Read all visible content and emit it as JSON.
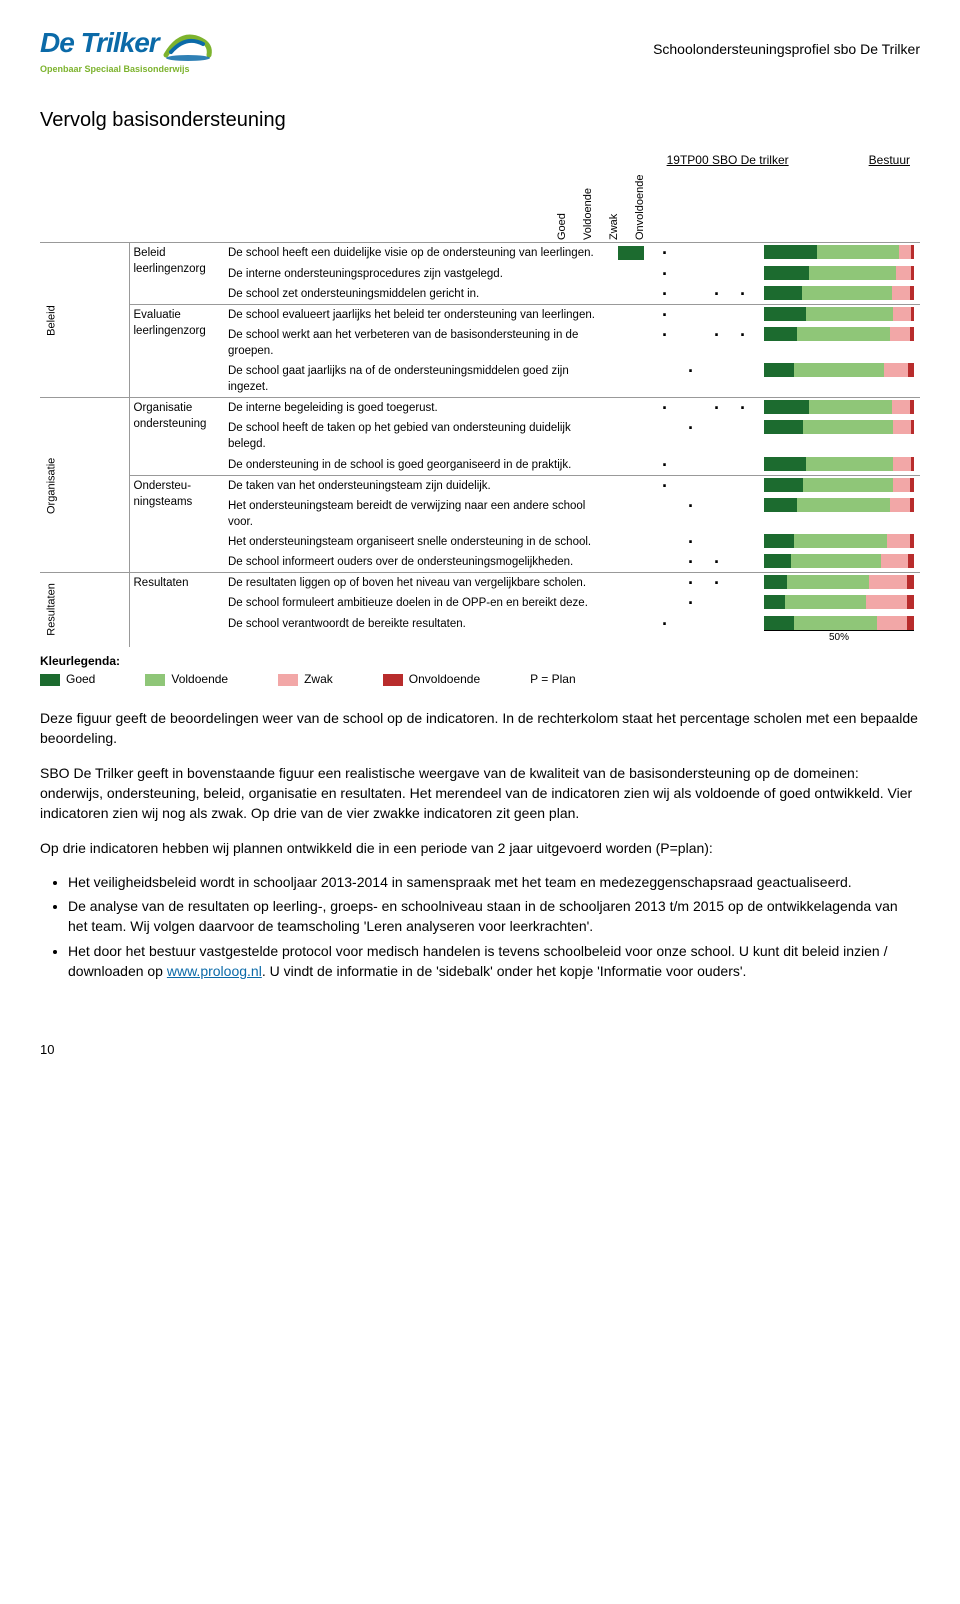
{
  "colors": {
    "goed": "#1c6b2f",
    "voldoende": "#8fc678",
    "zwak": "#f2a7a7",
    "onvoldoende": "#b82c2c",
    "border": "#999999",
    "logo_blue": "#0b6aa8",
    "logo_green": "#7db32e"
  },
  "header": {
    "logo_name": "De Trilker",
    "logo_tagline": "Openbaar Speciaal Basisonderwijs",
    "caption": "Schoolondersteuningsprofiel sbo De Trilker"
  },
  "section_title": "Vervolg basisondersteuning",
  "chart": {
    "school_label": "19TP00 SBO De trilker",
    "bestuur_label": "Bestuur",
    "col_labels": [
      "Goed",
      "Voldoende",
      "Zwak",
      "Onvoldoende"
    ],
    "fifty_label": "50%",
    "domains": [
      {
        "domain": "Beleid",
        "subcats": [
          {
            "name": "Beleid leerlingenzorg",
            "rows": [
              {
                "text": "De school heeft een duidelijke visie op de ondersteuning van leerlingen.",
                "score_col": 0,
                "dots": [
                  1,
                  0,
                  0,
                  0
                ],
                "bar": [
                  0.35,
                  0.55,
                  0.08,
                  0.02
                ]
              },
              {
                "text": "De interne ondersteuningsprocedures zijn vastgelegd.",
                "score_col": null,
                "dots": [
                  1,
                  0,
                  0,
                  0
                ],
                "bar": [
                  0.3,
                  0.58,
                  0.1,
                  0.02
                ]
              },
              {
                "text": "De school zet ondersteuningsmiddelen gericht in.",
                "score_col": null,
                "dots": [
                  1,
                  0,
                  1,
                  1
                ],
                "bar": [
                  0.25,
                  0.6,
                  0.12,
                  0.03
                ]
              }
            ]
          },
          {
            "name": "Evaluatie leerlingenzorg",
            "rows": [
              {
                "text": "De school evalueert jaarlijks het beleid ter ondersteuning van leerlingen.",
                "score_col": null,
                "dots": [
                  1,
                  0,
                  0,
                  0
                ],
                "bar": [
                  0.28,
                  0.58,
                  0.12,
                  0.02
                ]
              },
              {
                "text": "De school werkt aan het verbeteren van de basisondersteuning in de groepen.",
                "score_col": null,
                "dots": [
                  1,
                  0,
                  1,
                  1
                ],
                "bar": [
                  0.22,
                  0.62,
                  0.13,
                  0.03
                ]
              },
              {
                "text": "De  school gaat jaarlijks na of de ondersteuningsmiddelen goed zijn ingezet.",
                "score_col": null,
                "dots": [
                  0,
                  1,
                  0,
                  0
                ],
                "bar": [
                  0.2,
                  0.6,
                  0.16,
                  0.04
                ]
              }
            ]
          }
        ]
      },
      {
        "domain": "Organisatie",
        "subcats": [
          {
            "name": "Organisatie ondersteuning",
            "rows": [
              {
                "text": "De interne begeleiding is goed toegerust.",
                "score_col": null,
                "dots": [
                  1,
                  0,
                  1,
                  1
                ],
                "bar": [
                  0.3,
                  0.55,
                  0.12,
                  0.03
                ]
              },
              {
                "text": "De school heeft de taken op het gebied van ondersteuning duidelijk belegd.",
                "score_col": null,
                "dots": [
                  0,
                  1,
                  0,
                  0
                ],
                "bar": [
                  0.26,
                  0.6,
                  0.12,
                  0.02
                ]
              },
              {
                "text": "De ondersteuning in de school is goed georganiseerd in de praktijk.",
                "score_col": null,
                "dots": [
                  1,
                  0,
                  0,
                  0
                ],
                "bar": [
                  0.28,
                  0.58,
                  0.12,
                  0.02
                ]
              }
            ]
          },
          {
            "name": "Ondersteu-ningsteams",
            "rows": [
              {
                "text": "De taken van het ondersteuningsteam zijn duidelijk.",
                "score_col": null,
                "dots": [
                  1,
                  0,
                  0,
                  0
                ],
                "bar": [
                  0.26,
                  0.6,
                  0.11,
                  0.03
                ]
              },
              {
                "text": "Het ondersteuningsteam bereidt de verwijzing naar een andere school voor.",
                "score_col": null,
                "dots": [
                  0,
                  1,
                  0,
                  0
                ],
                "bar": [
                  0.22,
                  0.62,
                  0.13,
                  0.03
                ]
              },
              {
                "text": "Het ondersteuningsteam organiseert snelle ondersteuning in de school.",
                "score_col": null,
                "dots": [
                  0,
                  1,
                  0,
                  0
                ],
                "bar": [
                  0.2,
                  0.62,
                  0.15,
                  0.03
                ]
              },
              {
                "text": "De school informeert ouders over de ondersteuningsmogelijkheden.",
                "score_col": null,
                "dots": [
                  0,
                  1,
                  1,
                  0
                ],
                "bar": [
                  0.18,
                  0.6,
                  0.18,
                  0.04
                ]
              }
            ]
          }
        ]
      },
      {
        "domain": "Resultaten",
        "subcats": [
          {
            "name": "Resultaten",
            "rows": [
              {
                "text": "De resultaten liggen op of boven het niveau van vergelijkbare scholen.",
                "score_col": null,
                "dots": [
                  0,
                  1,
                  1,
                  0
                ],
                "bar": [
                  0.15,
                  0.55,
                  0.25,
                  0.05
                ]
              },
              {
                "text": "De school formuleert ambitieuze doelen in de OPP-en en bereikt deze.",
                "score_col": null,
                "dots": [
                  0,
                  1,
                  0,
                  0
                ],
                "bar": [
                  0.14,
                  0.54,
                  0.27,
                  0.05
                ]
              },
              {
                "text": "De school verantwoordt de bereikte resultaten.",
                "score_col": null,
                "dots": [
                  1,
                  0,
                  0,
                  0
                ],
                "bar": [
                  0.2,
                  0.55,
                  0.2,
                  0.05
                ],
                "show_fifty": true
              }
            ]
          }
        ]
      }
    ]
  },
  "legend": {
    "title": "Kleurlegenda:",
    "items": [
      {
        "label": "Goed",
        "color_key": "goed"
      },
      {
        "label": "Voldoende",
        "color_key": "voldoende"
      },
      {
        "label": "Zwak",
        "color_key": "zwak"
      },
      {
        "label": "Onvoldoende",
        "color_key": "onvoldoende"
      }
    ],
    "pplan": "P = Plan"
  },
  "body": {
    "p1": "Deze figuur geeft de beoordelingen weer van de school op de indicatoren. In de rechterkolom staat het percentage scholen met een bepaalde beoordeling.",
    "p2": "SBO De Trilker geeft in bovenstaande figuur een realistische weergave van de kwaliteit van de basisondersteuning op de domeinen: onderwijs, ondersteuning, beleid, organisatie en resultaten. Het merendeel van de indicatoren zien wij als voldoende of goed ontwikkeld. Vier indicatoren zien wij nog als zwak. Op drie van de vier zwakke indicatoren zit geen plan.",
    "p3": "Op drie indicatoren hebben wij plannen ontwikkeld die in een periode van 2 jaar uitgevoerd worden (P=plan):",
    "bullets": [
      "Het veiligheidsbeleid wordt in schooljaar 2013-2014 in samenspraak met het team en medezeggenschapsraad geactualiseerd.",
      "De analyse van de resultaten op leerling-, groeps- en schoolniveau staan in de schooljaren 2013 t/m 2015 op de ontwikkelagenda van het team. Wij volgen daarvoor de teamscholing 'Leren analyseren voor leerkrachten'."
    ],
    "bullet3_prefix": "Het door het bestuur vastgestelde protocol voor medisch handelen is tevens schoolbeleid voor onze school. U kunt dit beleid inzien / downloaden op ",
    "bullet3_link": "www.proloog.nl",
    "bullet3_suffix": ". U vindt de informatie in de 'sidebalk' onder het kopje 'Informatie voor ouders'."
  },
  "page_number": "10"
}
